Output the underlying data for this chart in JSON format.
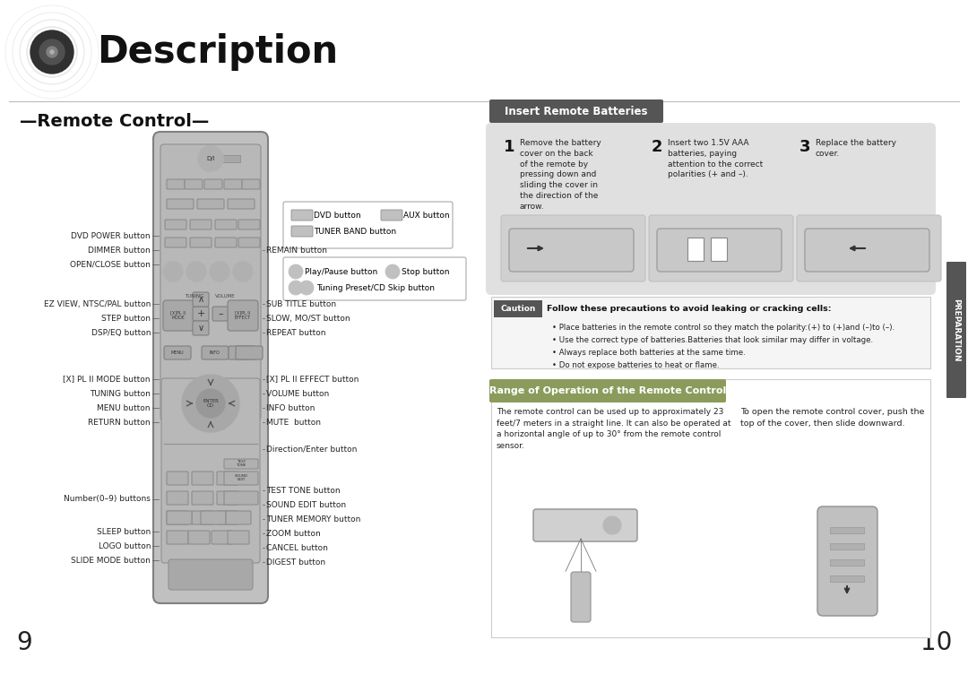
{
  "page_title": "Description",
  "section_left": "—Remote Control—",
  "section_right_title": "Insert Remote Batteries",
  "bg_color": "#ffffff",
  "side_tab_text": "PREPARATION",
  "page_left": "9",
  "page_right": "10",
  "left_labels": [
    [
      "DVD POWER button",
      490
    ],
    [
      "DIMMER button",
      474
    ],
    [
      "OPEN/CLOSE button",
      458
    ],
    [
      "EZ VIEW, NTSC/PAL button",
      414
    ],
    [
      "STEP button",
      398
    ],
    [
      "DSP/EQ button",
      382
    ],
    [
      "[X] PL II MODE button",
      330
    ],
    [
      "TUNING button",
      314
    ],
    [
      "MENU button",
      298
    ],
    [
      "RETURN button",
      282
    ],
    [
      "Number(0–9) buttons",
      196
    ],
    [
      "SLEEP button",
      160
    ],
    [
      "LOGO button",
      144
    ],
    [
      "SLIDE MODE button",
      128
    ]
  ],
  "right_labels_upper": [
    [
      "REMAIN button",
      474
    ],
    [
      "SUB TITLE button",
      414
    ],
    [
      "SLOW, MO/ST button",
      398
    ],
    [
      "REPEAT button",
      382
    ],
    [
      "[X] PL II EFFECT button",
      330
    ],
    [
      "VOLUME button",
      314
    ],
    [
      "INFO button",
      298
    ],
    [
      "MUTE  button",
      282
    ],
    [
      "Direction/Enter button",
      252
    ]
  ],
  "right_labels_lower": [
    [
      "TEST TONE button",
      206
    ],
    [
      "SOUND EDIT button",
      190
    ],
    [
      "TUNER MEMORY button",
      174
    ],
    [
      "ZOOM button",
      158
    ],
    [
      "CANCEL button",
      142
    ],
    [
      "DIGEST button",
      126
    ]
  ],
  "step1_text": "Remove the battery\ncover on the back\nof the remote by\npressing down and\nsliding the cover in\nthe direction of the\narrow.",
  "step2_text": "Insert two 1.5V AAA\nbatteries, paying\nattention to the correct\npolarities (+ and –).",
  "step3_text": "Replace the battery\ncover.",
  "caution_header": "Follow these precautions to avoid leaking or cracking cells:",
  "caution_bullets": [
    "Place batteries in the remote control so they match the polarity:(+) to (+)and (–)to (–).",
    "Use the correct type of batteries.Batteries that look similar may differ in voltage.",
    "Always replace both batteries at the same time.",
    "Do not expose batteries to heat or flame."
  ],
  "range_title": "Range of Operation of the Remote Control",
  "range_text": "The remote control can be used up to approximately 23\nfeet/7 meters in a straight line. It can also be operated at\na horizontal angle of up to 30° from the remote control\nsensor.",
  "range_sidebar": "To open the remote control cover, push the\ntop of the cover, then slide downward.",
  "remote_color": "#c0c0c0",
  "remote_dark": "#a0a0a0",
  "remote_edge": "#808080",
  "step_bg": "#e0e0e0",
  "caution_label_bg": "#555555",
  "range_title_bg": "#8b9b5c",
  "insert_title_bg": "#555555"
}
